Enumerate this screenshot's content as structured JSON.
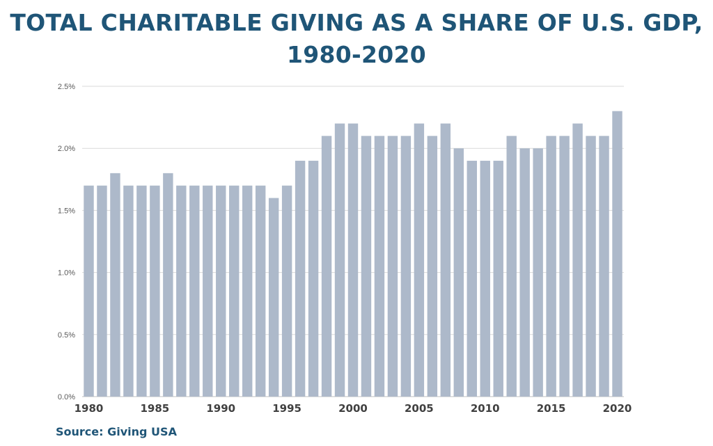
{
  "chart_data": {
    "type": "bar",
    "title": "TOTAL CHARITABLE GIVING AS A SHARE OF U.S. GDP,",
    "subtitle": "1980-2020",
    "xlabel": "",
    "ylabel": "",
    "ylim": [
      0,
      2.5
    ],
    "y_ticks": [
      "0.0%",
      "0.5%",
      "1.0%",
      "1.5%",
      "2.0%",
      "2.5%"
    ],
    "y_tick_values": [
      0,
      0.5,
      1.0,
      1.5,
      2.0,
      2.5
    ],
    "x_tick_labels": [
      "1980",
      "1985",
      "1990",
      "1995",
      "2000",
      "2005",
      "2010",
      "2015",
      "2020"
    ],
    "categories": [
      "1980",
      "1981",
      "1982",
      "1983",
      "1984",
      "1985",
      "1986",
      "1987",
      "1988",
      "1989",
      "1990",
      "1991",
      "1992",
      "1993",
      "1994",
      "1995",
      "1996",
      "1997",
      "1998",
      "1999",
      "2000",
      "2001",
      "2002",
      "2003",
      "2004",
      "2005",
      "2006",
      "2007",
      "2008",
      "2009",
      "2010",
      "2011",
      "2012",
      "2013",
      "2014",
      "2015",
      "2016",
      "2017",
      "2018",
      "2019",
      "2020"
    ],
    "values": [
      1.7,
      1.7,
      1.8,
      1.7,
      1.7,
      1.7,
      1.8,
      1.7,
      1.7,
      1.7,
      1.7,
      1.7,
      1.7,
      1.7,
      1.6,
      1.7,
      1.9,
      1.9,
      2.1,
      2.2,
      2.2,
      2.1,
      2.1,
      2.1,
      2.1,
      2.2,
      2.1,
      2.2,
      2.0,
      1.9,
      1.9,
      1.9,
      2.1,
      2.0,
      2.0,
      2.1,
      2.1,
      2.2,
      2.1,
      2.1,
      2.3
    ],
    "grid": true,
    "legend": "none",
    "colors": {
      "bar": "#adb9ca",
      "grid": "#d9d9d9",
      "title": "#1f5577"
    }
  },
  "source": "Source: Giving USA"
}
